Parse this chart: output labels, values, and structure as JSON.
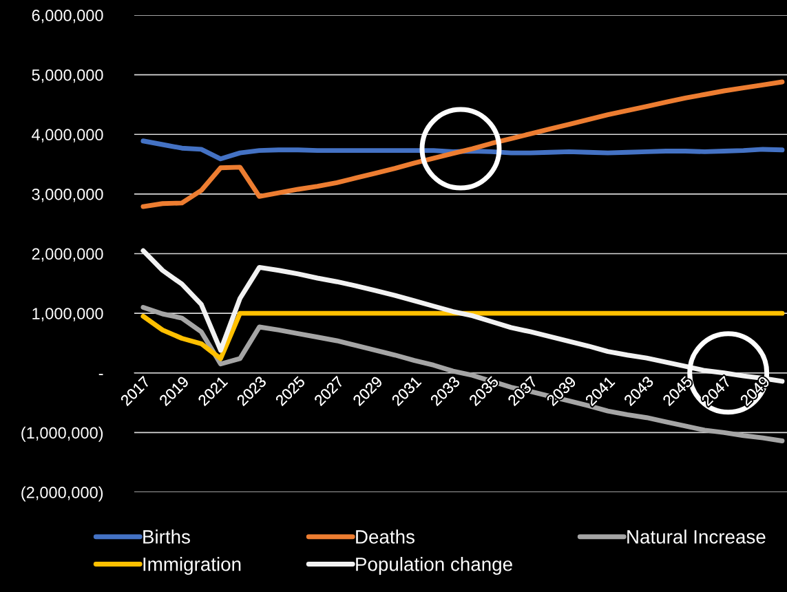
{
  "chart_data": {
    "type": "line",
    "categories": [
      "2017",
      null,
      "2019",
      null,
      "2021",
      null,
      "2023",
      null,
      "2025",
      null,
      "2027",
      null,
      "2029",
      null,
      "2031",
      null,
      "2033",
      null,
      "2035",
      null,
      "2037",
      null,
      "2039",
      null,
      "2041",
      null,
      "2043",
      null,
      "2045",
      null,
      "2047",
      null,
      "2049",
      null
    ],
    "series": [
      {
        "name": "Births",
        "color": "#4472c4",
        "values": [
          3890000,
          3830000,
          3770000,
          3750000,
          3590000,
          3690000,
          3730000,
          3740000,
          3740000,
          3730000,
          3730000,
          3730000,
          3730000,
          3730000,
          3730000,
          3730000,
          3710000,
          3720000,
          3710000,
          3690000,
          3690000,
          3700000,
          3710000,
          3700000,
          3690000,
          3700000,
          3710000,
          3720000,
          3720000,
          3710000,
          3720000,
          3730000,
          3750000,
          3740000
        ]
      },
      {
        "name": "Deaths",
        "color": "#ed7d31",
        "values": [
          2790000,
          2840000,
          2850000,
          3060000,
          3440000,
          3450000,
          2960000,
          3020000,
          3080000,
          3130000,
          3190000,
          3270000,
          3350000,
          3430000,
          3520000,
          3600000,
          3680000,
          3760000,
          3850000,
          3930000,
          4010000,
          4090000,
          4170000,
          4250000,
          4330000,
          4400000,
          4470000,
          4540000,
          4610000,
          4670000,
          4730000,
          4780000,
          4830000,
          4880000
        ]
      },
      {
        "name": "Natural Increase",
        "color": "#a5a5a5",
        "values": [
          1100000,
          990000,
          920000,
          690000,
          150000,
          240000,
          770000,
          720000,
          660000,
          600000,
          540000,
          460000,
          380000,
          300000,
          210000,
          130000,
          30000,
          -40000,
          -140000,
          -240000,
          -310000,
          -390000,
          -470000,
          -550000,
          -640000,
          -700000,
          -750000,
          -820000,
          -890000,
          -960000,
          -1000000,
          -1050000,
          -1090000,
          -1140000
        ]
      },
      {
        "name": "Immigration",
        "color": "#ffc000",
        "values": [
          950000,
          720000,
          580000,
          490000,
          240000,
          1000000,
          1000000,
          1000000,
          1000000,
          1000000,
          1000000,
          1000000,
          1000000,
          1000000,
          1000000,
          1000000,
          1000000,
          1000000,
          1000000,
          1000000,
          1000000,
          1000000,
          1000000,
          1000000,
          1000000,
          1000000,
          1000000,
          1000000,
          1000000,
          1000000,
          1000000,
          1000000,
          1000000,
          1000000
        ]
      },
      {
        "name": "Population change",
        "color": "#f2f2f2",
        "values": [
          2050000,
          1720000,
          1490000,
          1150000,
          380000,
          1250000,
          1770000,
          1720000,
          1660000,
          1590000,
          1530000,
          1460000,
          1380000,
          1300000,
          1210000,
          1120000,
          1030000,
          960000,
          860000,
          760000,
          690000,
          610000,
          530000,
          450000,
          360000,
          300000,
          250000,
          180000,
          110000,
          40000,
          0,
          -50000,
          -90000,
          -140000
        ]
      }
    ],
    "ylim": [
      -2000000,
      6000000
    ],
    "yticks": [
      {
        "value": -2000000,
        "label": "(2,000,000)"
      },
      {
        "value": -1000000,
        "label": "(1,000,000)"
      },
      {
        "value": 0,
        "label": "-"
      },
      {
        "value": 1000000,
        "label": "1,000,000"
      },
      {
        "value": 2000000,
        "label": "2,000,000"
      },
      {
        "value": 3000000,
        "label": "3,000,000"
      },
      {
        "value": 4000000,
        "label": "4,000,000"
      },
      {
        "value": 5000000,
        "label": "5,000,000"
      },
      {
        "value": 6000000,
        "label": "6,000,000"
      }
    ],
    "grid": "y",
    "legend": "bottom",
    "marker": "none",
    "line_style": "solid"
  }
}
